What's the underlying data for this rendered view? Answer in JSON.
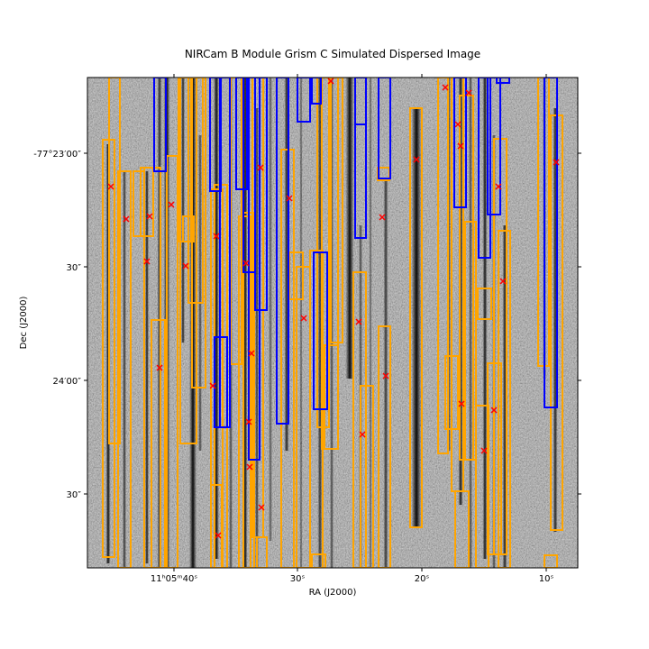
{
  "chart_data": {
    "type": "image",
    "title": "NIRCam B Module Grism C Simulated Dispersed Image",
    "xlabel": "RA (J2000)",
    "ylabel": "Dec (J2000)",
    "x_tick_labels": [
      "11ʰ05ᵐ40ˢ",
      "30ˢ",
      "20ˢ",
      "10ˢ"
    ],
    "y_tick_labels": [
      "-77°23′00″",
      "30″",
      "24′00″",
      "30″"
    ],
    "colors": {
      "box_orange": "#ffa500",
      "box_blue": "#0000ff",
      "marker_red": "#ff0000",
      "background_min": "#000000",
      "background_max": "#ffffff"
    },
    "overlays": {
      "orange_boxes": "wide trace bounding boxes",
      "blue_boxes": "trace bounding boxes",
      "red_markers": "source positions (x markers)"
    }
  }
}
